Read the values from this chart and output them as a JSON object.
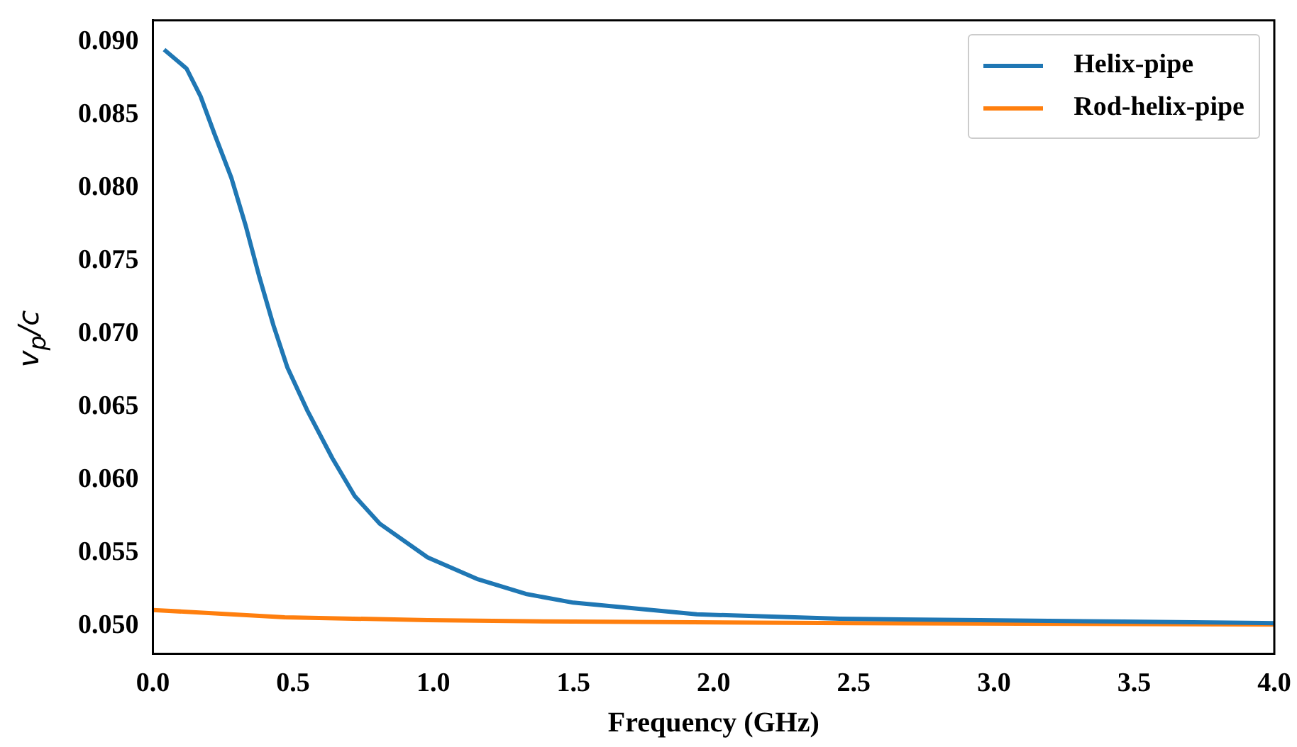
{
  "chart_data": {
    "type": "line",
    "xlabel": "Frequency (GHz)",
    "ylabel": "v$_{p}$/c",
    "xlim": [
      0,
      4
    ],
    "xticks": [
      {
        "value": 0,
        "label": "0.0"
      },
      {
        "value": 0.5,
        "label": "0.5"
      },
      {
        "value": 1,
        "label": "1.0"
      },
      {
        "value": 1.5,
        "label": "1.5"
      },
      {
        "value": 2,
        "label": "2.0"
      },
      {
        "value": 2.5,
        "label": "2.5"
      },
      {
        "value": 3,
        "label": "3.0"
      },
      {
        "value": 3.5,
        "label": "3.5"
      },
      {
        "value": 4,
        "label": "4.0"
      }
    ],
    "ylim": [
      0.0481,
      0.0915
    ],
    "yticks": [
      {
        "value": 0.05,
        "label": "0.050"
      },
      {
        "value": 0.055,
        "label": "0.055"
      },
      {
        "value": 0.06,
        "label": "0.060"
      },
      {
        "value": 0.065,
        "label": "0.065"
      },
      {
        "value": 0.07,
        "label": "0.070"
      },
      {
        "value": 0.075,
        "label": "0.075"
      },
      {
        "value": 0.08,
        "label": "0.080"
      },
      {
        "value": 0.085,
        "label": "0.085"
      },
      {
        "value": 0.09,
        "label": "0.090"
      }
    ],
    "grid": false,
    "legend": "top right",
    "marker": "none",
    "line_style": "solid",
    "series": [
      {
        "name": "Helix-pipe",
        "color": "#1f77b4",
        "x": [
          0.04,
          0.12,
          0.17,
          0.22,
          0.28,
          0.33,
          0.38,
          0.43,
          0.48,
          0.55,
          0.64,
          0.72,
          0.81,
          0.98,
          1.16,
          1.33,
          1.5,
          1.94,
          2.45,
          2.95,
          3.46,
          4.0
        ],
        "values": [
          0.0895,
          0.0882,
          0.0863,
          0.0837,
          0.0807,
          0.0775,
          0.0739,
          0.0706,
          0.0677,
          0.0648,
          0.0615,
          0.0589,
          0.057,
          0.0547,
          0.0532,
          0.0522,
          0.0516,
          0.0508,
          0.0505,
          0.0504,
          0.0503,
          0.0502
        ]
      },
      {
        "name": "Rod-helix-pipe",
        "color": "#ff7f0e",
        "x": [
          0,
          0.47,
          0.98,
          1.5,
          2.5,
          4.0
        ],
        "values": [
          0.0511,
          0.0506,
          0.0504,
          0.0503,
          0.0502,
          0.0501
        ]
      }
    ]
  }
}
